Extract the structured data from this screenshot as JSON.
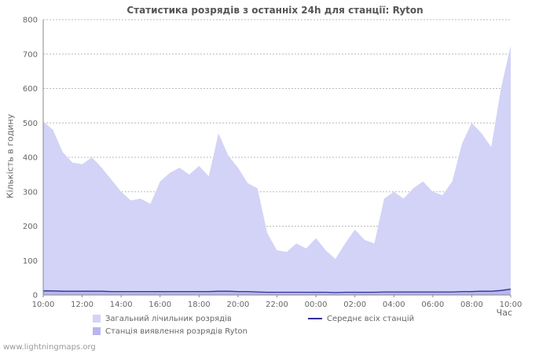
{
  "page": {
    "watermark": "www.lightningmaps.org"
  },
  "chart_data": {
    "type": "area",
    "title": "Статистика розрядів з останніх 24h для станції: Ryton",
    "xlabel": "Час",
    "ylabel": "Кількість в годину",
    "ylim": [
      0,
      800
    ],
    "y_tick_step": 100,
    "x_tick_labels": [
      "10:00",
      "12:00",
      "14:00",
      "16:00",
      "18:00",
      "20:00",
      "22:00",
      "00:00",
      "02:00",
      "04:00",
      "06:00",
      "08:00",
      "10:00"
    ],
    "x_span_hours": 24,
    "grid": "horizontal-dotted",
    "legend_position": "bottom",
    "axis_color": "#8a8a8a",
    "grid_color": "#bbbbbb",
    "series": [
      {
        "name": "Загальний лічильник розрядів",
        "type": "area",
        "color": "#d3d3f7",
        "values": [
          505,
          480,
          415,
          385,
          380,
          400,
          370,
          335,
          300,
          275,
          280,
          265,
          330,
          355,
          370,
          350,
          375,
          345,
          470,
          405,
          370,
          325,
          310,
          180,
          130,
          125,
          150,
          135,
          165,
          130,
          105,
          150,
          190,
          160,
          150,
          280,
          300,
          280,
          310,
          330,
          300,
          290,
          330,
          440,
          500,
          470,
          430,
          600,
          725
        ]
      },
      {
        "name": "Станція виявлення розрядів Ryton",
        "type": "area",
        "color": "#b7b7ee",
        "values": [
          15,
          14,
          13,
          12,
          12,
          12,
          11,
          10,
          10,
          9,
          9,
          8,
          10,
          10,
          11,
          10,
          11,
          10,
          12,
          11,
          10,
          9,
          8,
          7,
          6,
          6,
          6,
          6,
          7,
          6,
          5,
          6,
          7,
          7,
          6,
          8,
          9,
          9,
          10,
          10,
          9,
          9,
          10,
          11,
          12,
          13,
          12,
          16,
          20
        ]
      },
      {
        "name": "Середнє всіх станцій",
        "type": "line",
        "color": "#31319c",
        "values": [
          12,
          12,
          11,
          11,
          11,
          11,
          11,
          10,
          10,
          10,
          10,
          10,
          10,
          10,
          10,
          10,
          10,
          10,
          11,
          11,
          10,
          10,
          9,
          8,
          8,
          8,
          8,
          8,
          8,
          8,
          7,
          8,
          8,
          8,
          8,
          9,
          9,
          9,
          9,
          9,
          9,
          9,
          9,
          10,
          10,
          11,
          11,
          13,
          17
        ]
      }
    ]
  }
}
